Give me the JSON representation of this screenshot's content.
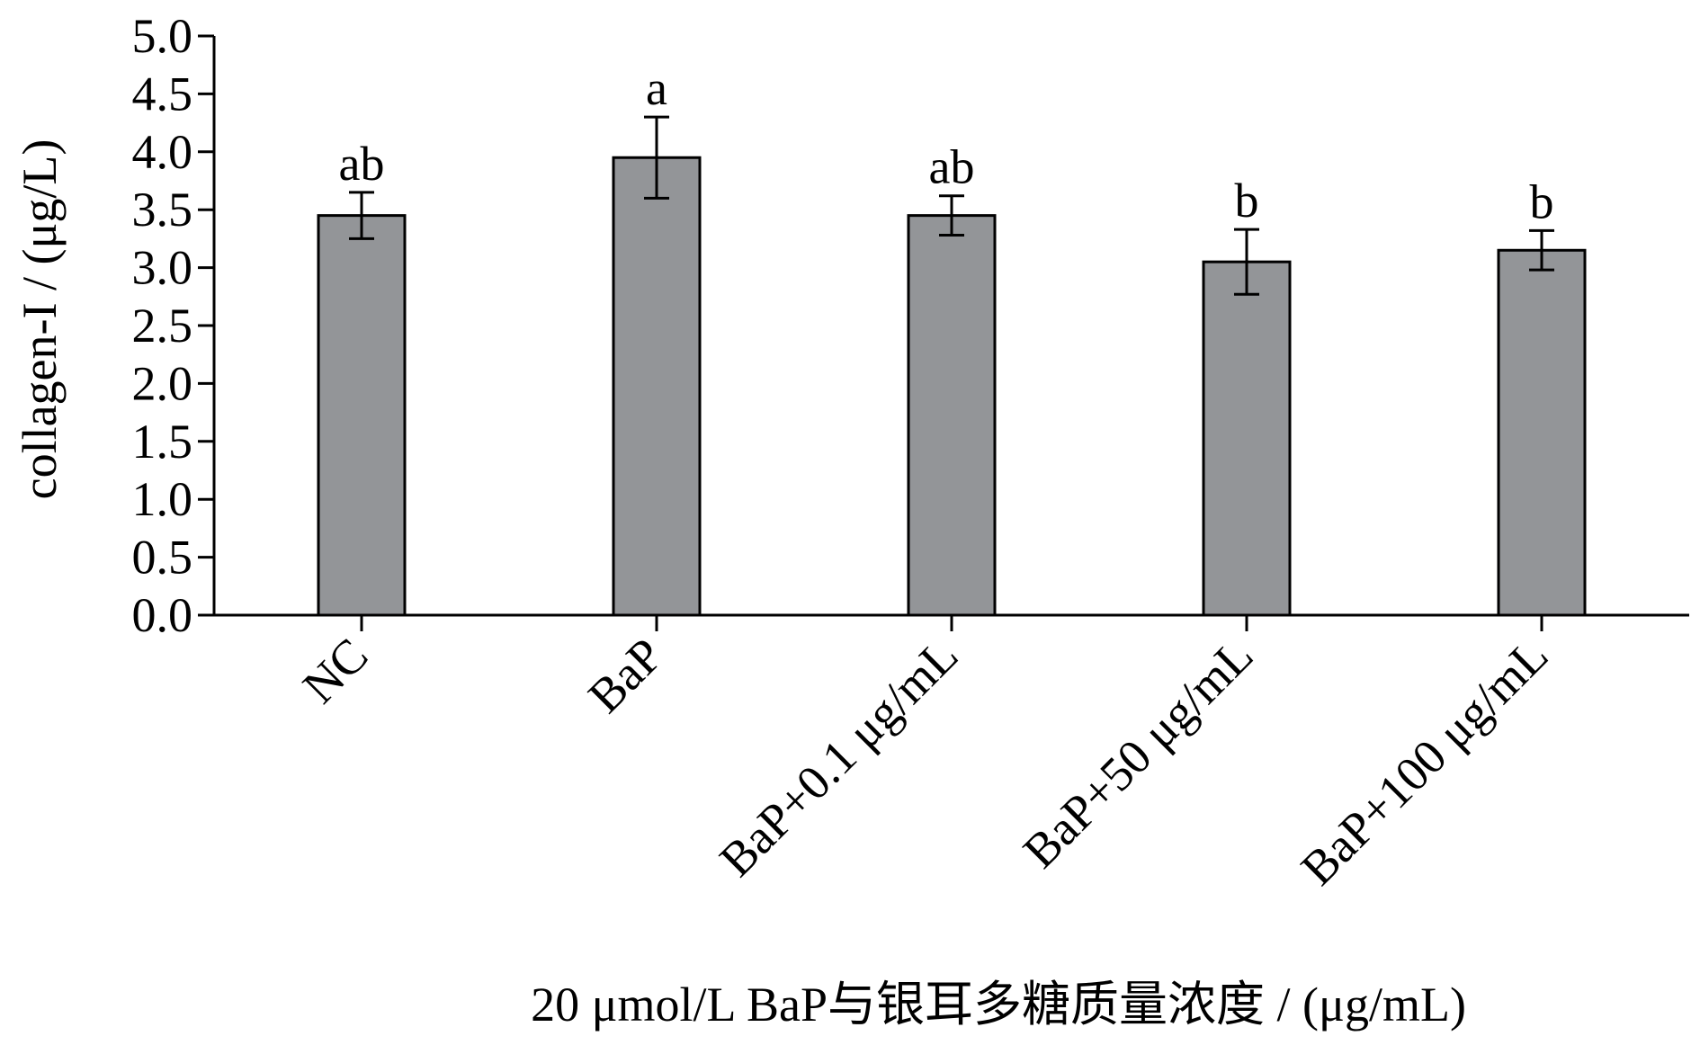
{
  "chart_data": {
    "type": "bar",
    "categories": [
      "NC",
      "BaP",
      "BaP+0.1 μg/mL",
      "BaP+50 μg/mL",
      "BaP+100 μg/mL"
    ],
    "values": [
      3.45,
      3.95,
      3.45,
      3.05,
      3.15
    ],
    "errors": [
      0.2,
      0.35,
      0.17,
      0.28,
      0.17
    ],
    "significance": [
      "ab",
      "a",
      "ab",
      "b",
      "b"
    ],
    "xlabel": "20 μmol/L BaP与银耳多糖质量浓度 / (μg/mL)",
    "ylabel": "collagen-I / (μg/L)",
    "ylim": [
      0,
      5
    ],
    "yticks": [
      "0.0",
      "0.5",
      "1.0",
      "1.5",
      "2.0",
      "2.5",
      "3.0",
      "3.5",
      "4.0",
      "4.5",
      "5.0"
    ],
    "bar_color": "#939598",
    "grid": false,
    "legend": "none"
  }
}
